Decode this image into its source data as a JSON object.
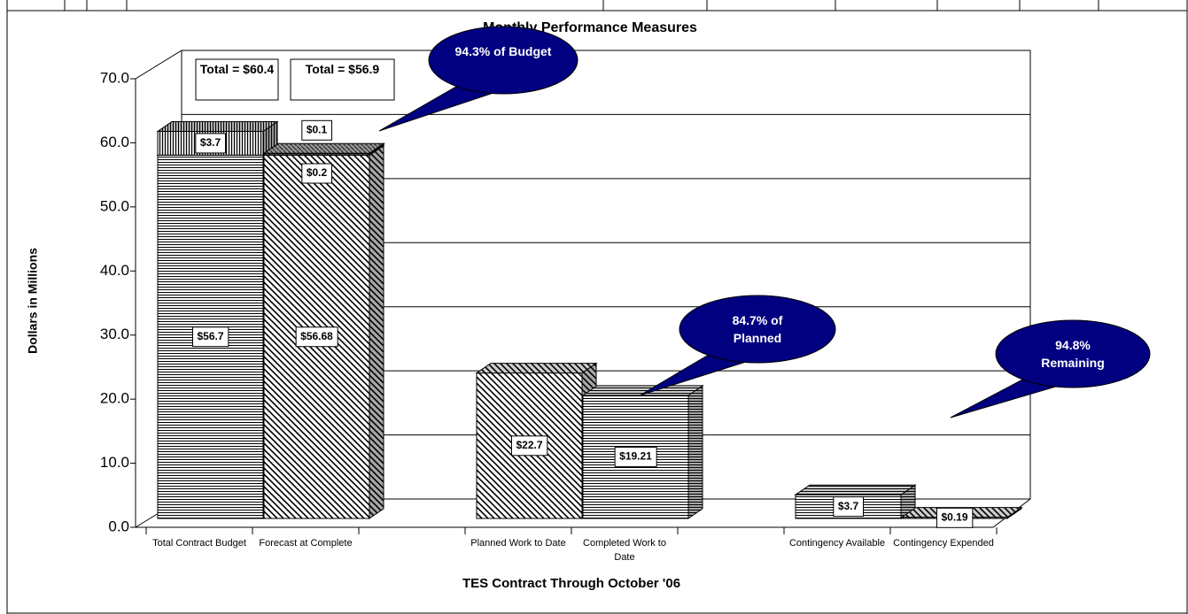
{
  "chart_data": {
    "type": "bar",
    "stacked": true,
    "title": "Monthly Performance Measures",
    "x_label": "TES Contract Through October '06",
    "y_label": "Dollars in Millions",
    "categories": [
      "Total Contract Budget",
      "Forecast at Complete",
      null,
      "Planned Work  to Date",
      "Completed Work to Date",
      null,
      "Contingency Available",
      "Contingency Expended"
    ],
    "series": [
      {
        "color": "#000000",
        "values": [
          56.7,
          56.68,
          null,
          22.7,
          19.21,
          null,
          3.7,
          0.19
        ],
        "value_labels": [
          "$56.7",
          "$56.68",
          null,
          "$22.7",
          "$19.21",
          null,
          "$3.7",
          "$0.19"
        ]
      },
      {
        "color": "#000000",
        "values": [
          3.7,
          0.2,
          null,
          null,
          null,
          null,
          null,
          null
        ],
        "value_labels": [
          "$3.7",
          "$0.2",
          null,
          null,
          null,
          null,
          null,
          null
        ]
      },
      {
        "color": "#000000",
        "values": [
          null,
          0.1,
          null,
          null,
          null,
          null,
          null,
          null
        ],
        "value_labels": [
          null,
          "$0.1",
          null,
          null,
          null,
          null,
          null,
          null
        ]
      }
    ],
    "ylim": [
      0,
      70
    ],
    "yticks": [
      {
        "value": 0,
        "label": "0.0"
      },
      {
        "value": 10,
        "label": "10.0"
      },
      {
        "value": 20,
        "label": "20.0"
      },
      {
        "value": 30,
        "label": "30.0"
      },
      {
        "value": 40,
        "label": "40.0"
      },
      {
        "value": 50,
        "label": "50.0"
      },
      {
        "value": 60,
        "label": "60.0"
      },
      {
        "value": 70,
        "label": "70.0"
      }
    ],
    "grid": true,
    "annotations": [
      "Total = $60.4",
      "Total = $56.9"
    ],
    "callouts": [
      "94.3% of Budget",
      "84.7% of Planned",
      "94.8% Remaining"
    ]
  }
}
